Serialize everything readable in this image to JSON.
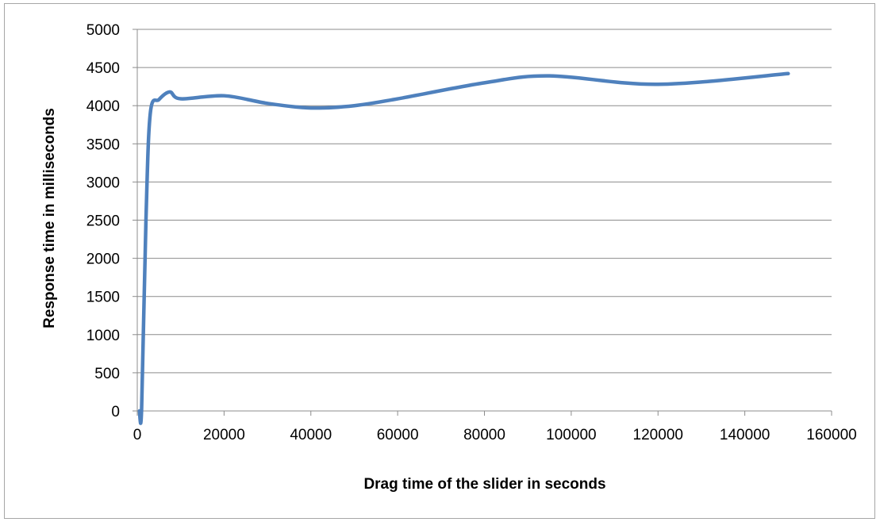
{
  "chart_data": {
    "type": "line",
    "title": "",
    "xlabel": "Drag time of the slider in seconds",
    "ylabel": "Response time in milliseconds",
    "xlim": [
      0,
      160000
    ],
    "ylim": [
      0,
      5000
    ],
    "x_ticks": [
      "0",
      "20000",
      "40000",
      "60000",
      "80000",
      "100000",
      "120000",
      "140000",
      "160000"
    ],
    "y_ticks": [
      "0",
      "500",
      "1000",
      "1500",
      "2000",
      "2500",
      "3000",
      "3500",
      "4000",
      "4500",
      "5000"
    ],
    "grid": "horizontal",
    "legend": "none",
    "series": [
      {
        "color": "#4f81bd",
        "x": [
          500,
          1000,
          2000,
          3000,
          5000,
          7500,
          10000,
          20000,
          30000,
          40000,
          50000,
          60000,
          80000,
          95000,
          120000,
          150000
        ],
        "y": [
          0,
          30,
          2500,
          3900,
          4080,
          4180,
          4090,
          4130,
          4030,
          3970,
          4000,
          4090,
          4300,
          4390,
          4280,
          4420
        ]
      }
    ]
  }
}
